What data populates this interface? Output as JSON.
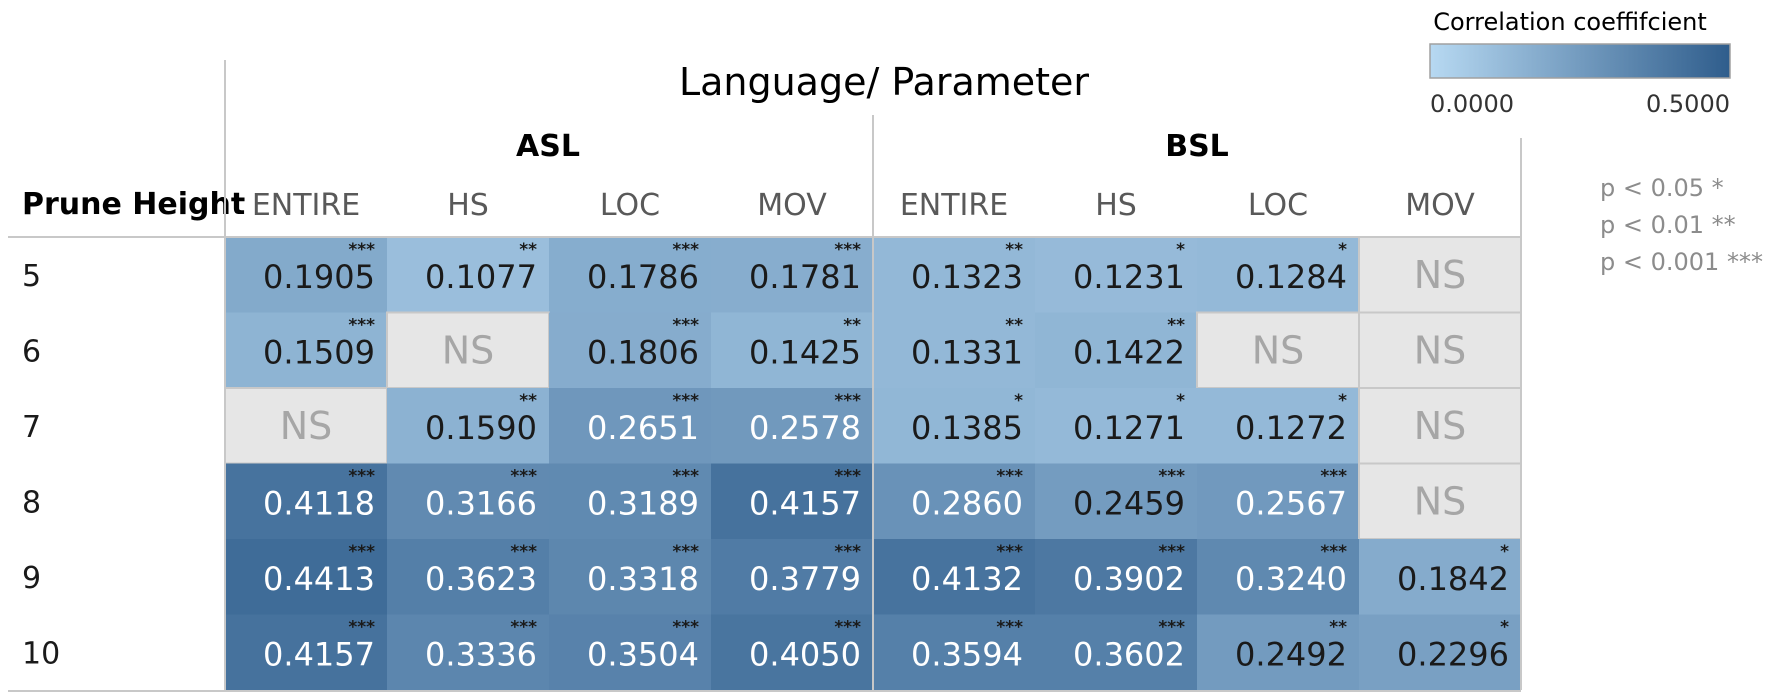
{
  "chart_data": {
    "type": "heatmap",
    "title": "Language/ Parameter",
    "row_header": "Prune Height",
    "groups": [
      {
        "name": "ASL",
        "columns": [
          "ENTIRE",
          "HS",
          "LOC",
          "MOV"
        ]
      },
      {
        "name": "BSL",
        "columns": [
          "ENTIRE",
          "HS",
          "LOC",
          "MOV"
        ]
      }
    ],
    "rows": [
      "5",
      "6",
      "7",
      "8",
      "9",
      "10"
    ],
    "values": [
      [
        0.1905,
        0.1077,
        0.1786,
        0.1781,
        0.1323,
        0.1231,
        0.1284,
        null
      ],
      [
        0.1509,
        null,
        0.1806,
        0.1425,
        0.1331,
        0.1422,
        null,
        null
      ],
      [
        null,
        0.159,
        0.2651,
        0.2578,
        0.1385,
        0.1271,
        0.1272,
        null
      ],
      [
        0.4118,
        0.3166,
        0.3189,
        0.4157,
        0.286,
        0.2459,
        0.2567,
        null
      ],
      [
        0.4413,
        0.3623,
        0.3318,
        0.3779,
        0.4132,
        0.3902,
        0.324,
        0.1842
      ],
      [
        0.4157,
        0.3336,
        0.3504,
        0.405,
        0.3594,
        0.3602,
        0.2492,
        0.2296
      ]
    ],
    "labels": [
      [
        "0.1905",
        "0.1077",
        "0.1786",
        "0.1781",
        "0.1323",
        "0.1231",
        "0.1284",
        "NS"
      ],
      [
        "0.1509",
        "NS",
        "0.1806",
        "0.1425",
        "0.1331",
        "0.1422",
        "NS",
        "NS"
      ],
      [
        "NS",
        "0.1590",
        "0.2651",
        "0.2578",
        "0.1385",
        "0.1271",
        "0.1272",
        "NS"
      ],
      [
        "0.4118",
        "0.3166",
        "0.3189",
        "0.4157",
        "0.2860",
        "0.2459",
        "0.2567",
        "NS"
      ],
      [
        "0.4413",
        "0.3623",
        "0.3318",
        "0.3779",
        "0.4132",
        "0.3902",
        "0.3240",
        "0.1842"
      ],
      [
        "0.4157",
        "0.3336",
        "0.3504",
        "0.4050",
        "0.3594",
        "0.3602",
        "0.2492",
        "0.2296"
      ]
    ],
    "significance": [
      [
        "***",
        "**",
        "***",
        "***",
        "**",
        "*",
        "*",
        ""
      ],
      [
        "***",
        "",
        "***",
        "**",
        "**",
        "**",
        "",
        ""
      ],
      [
        "",
        "**",
        "***",
        "***",
        "*",
        "*",
        "*",
        ""
      ],
      [
        "***",
        "***",
        "***",
        "***",
        "***",
        "***",
        "***",
        ""
      ],
      [
        "***",
        "***",
        "***",
        "***",
        "***",
        "***",
        "***",
        "*"
      ],
      [
        "***",
        "***",
        "***",
        "***",
        "***",
        "***",
        "**",
        "*"
      ]
    ],
    "legend": {
      "title": "Correlation coeffifcient",
      "min_label": "0.0000",
      "max_label": "0.5000",
      "range": [
        0,
        0.5
      ],
      "placement": "top-right"
    },
    "significance_key": [
      "p < 0.05 *",
      "p < 0.01 **",
      "p < 0.001 ***"
    ],
    "colors": {
      "low": "#b7d9f2",
      "high": "#2f5d8c",
      "ns_fill": "#e6e6e6",
      "ns_text": "#a6a6a6",
      "dark_text": "#1a1a1a",
      "light_text": "#ffffff",
      "grid": "#c8c8c8",
      "key_text": "#8c8c8c",
      "header_text": "#595959"
    }
  }
}
